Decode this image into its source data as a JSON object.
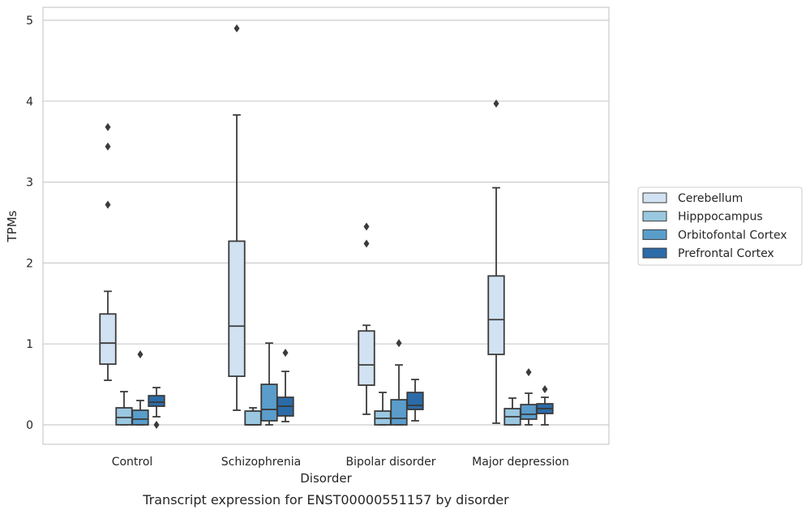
{
  "chart_data": {
    "type": "boxplot",
    "xlabel": "Disorder",
    "ylabel": "TPMs",
    "caption": "Transcript expression for ENST00000551157 by disorder",
    "ylim": [
      -0.24,
      5.16
    ],
    "yticks": [
      0,
      1,
      2,
      3,
      4,
      5
    ],
    "grid": "horizontal",
    "legend_position": "right",
    "categories": [
      "Control",
      "Schizophrenia",
      "Bipolar disorder",
      "Major depression"
    ],
    "series": [
      {
        "name": "Cerebellum",
        "color": "#d1e2f2",
        "boxes": [
          {
            "whislo": 0.55,
            "q1": 0.75,
            "med": 1.01,
            "q3": 1.37,
            "whishi": 1.65,
            "fliers": [
              2.72,
              3.44,
              3.68
            ]
          },
          {
            "whislo": 0.18,
            "q1": 0.6,
            "med": 1.22,
            "q3": 2.27,
            "whishi": 3.83,
            "fliers": [
              4.9
            ]
          },
          {
            "whislo": 0.13,
            "q1": 0.49,
            "med": 0.74,
            "q3": 1.16,
            "whishi": 1.23,
            "fliers": [
              2.24,
              2.45
            ]
          },
          {
            "whislo": 0.02,
            "q1": 0.87,
            "med": 1.3,
            "q3": 1.84,
            "whishi": 2.93,
            "fliers": [
              3.97
            ]
          }
        ]
      },
      {
        "name": "Hipppocampus",
        "color": "#9ac8e0",
        "boxes": [
          {
            "whislo": 0.0,
            "q1": 0.0,
            "med": 0.09,
            "q3": 0.21,
            "whishi": 0.41,
            "fliers": []
          },
          {
            "whislo": 0.0,
            "q1": 0.0,
            "med": 0.0,
            "q3": 0.17,
            "whishi": 0.21,
            "fliers": []
          },
          {
            "whislo": 0.0,
            "q1": 0.0,
            "med": 0.08,
            "q3": 0.17,
            "whishi": 0.4,
            "fliers": []
          },
          {
            "whislo": 0.0,
            "q1": 0.0,
            "med": 0.1,
            "q3": 0.2,
            "whishi": 0.33,
            "fliers": []
          }
        ]
      },
      {
        "name": "Orbitofontal Cortex",
        "color": "#5a9dcb",
        "boxes": [
          {
            "whislo": 0.0,
            "q1": 0.0,
            "med": 0.07,
            "q3": 0.18,
            "whishi": 0.3,
            "fliers": [
              0.87
            ]
          },
          {
            "whislo": 0.0,
            "q1": 0.05,
            "med": 0.19,
            "q3": 0.5,
            "whishi": 1.01,
            "fliers": []
          },
          {
            "whislo": 0.0,
            "q1": 0.0,
            "med": 0.08,
            "q3": 0.31,
            "whishi": 0.74,
            "fliers": [
              1.01
            ]
          },
          {
            "whislo": 0.0,
            "q1": 0.07,
            "med": 0.13,
            "q3": 0.25,
            "whishi": 0.39,
            "fliers": [
              0.65
            ]
          }
        ]
      },
      {
        "name": "Prefrontal Cortex",
        "color": "#2b6ba8",
        "boxes": [
          {
            "whislo": 0.1,
            "q1": 0.23,
            "med": 0.28,
            "q3": 0.36,
            "whishi": 0.46,
            "fliers": [
              0.0
            ]
          },
          {
            "whislo": 0.04,
            "q1": 0.11,
            "med": 0.23,
            "q3": 0.34,
            "whishi": 0.66,
            "fliers": [
              0.89
            ]
          },
          {
            "whislo": 0.05,
            "q1": 0.19,
            "med": 0.24,
            "q3": 0.4,
            "whishi": 0.56,
            "fliers": []
          },
          {
            "whislo": 0.0,
            "q1": 0.14,
            "med": 0.2,
            "q3": 0.26,
            "whishi": 0.34,
            "fliers": [
              0.44
            ]
          }
        ]
      }
    ]
  }
}
